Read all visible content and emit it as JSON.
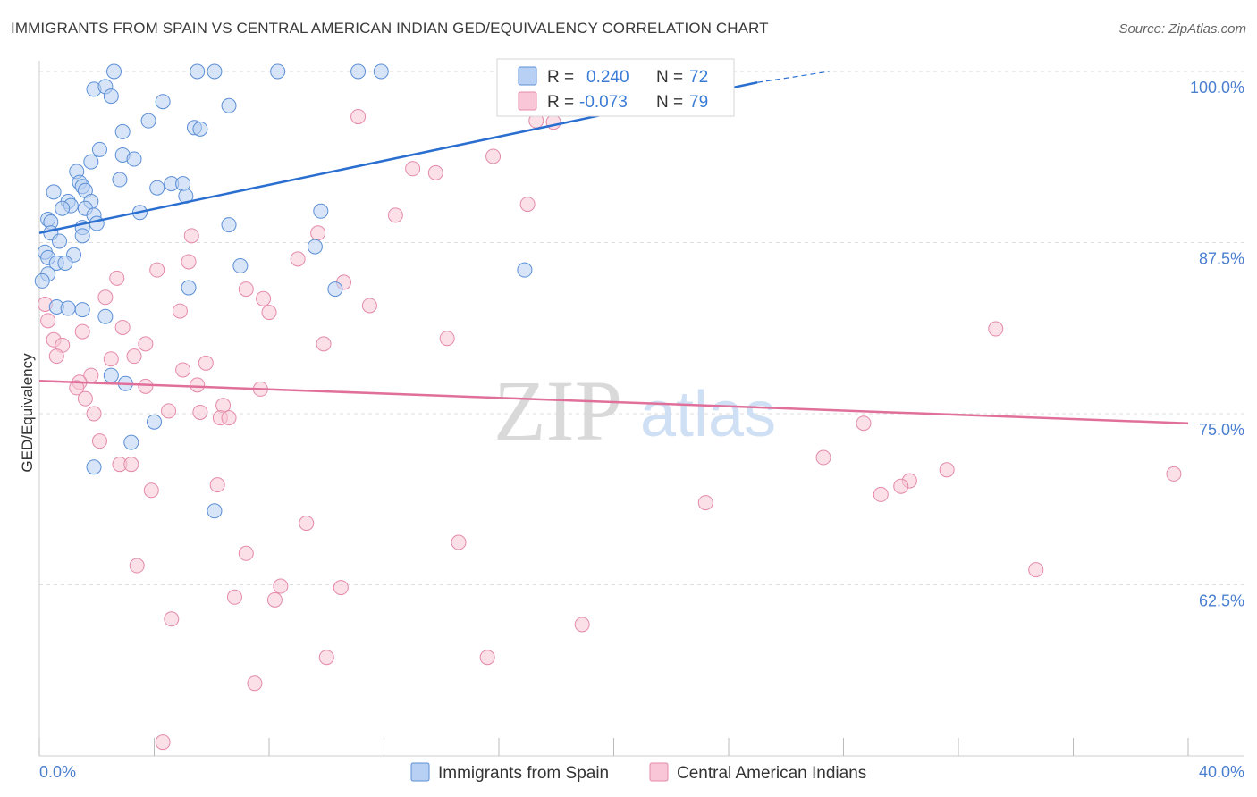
{
  "header": {
    "title": "IMMIGRANTS FROM SPAIN VS CENTRAL AMERICAN INDIAN GED/EQUIVALENCY CORRELATION CHART",
    "source": "Source: ZipAtlas.com"
  },
  "watermark": {
    "part1": "ZIP",
    "part2": "atlas"
  },
  "legend": {
    "rows": [
      {
        "r_label": "R =",
        "r_value": "0.240",
        "n_label": "N =",
        "n_value": "72"
      },
      {
        "r_label": "R =",
        "r_value": "-0.073",
        "n_label": "N =",
        "n_value": "79"
      }
    ]
  },
  "bottom_legend": [
    "Immigrants from Spain",
    "Central American Indians"
  ],
  "colors": {
    "blue_fill": "#b8d0f3",
    "blue_stroke": "#5b8fd6",
    "blue_line": "#2a6fd0",
    "pink_fill": "#f8c6d6",
    "pink_stroke": "#e48aaa",
    "pink_line": "#e0709a",
    "grid": "#dddddd",
    "tick_label": "#4a7fd0"
  },
  "chart_data": {
    "type": "scatter",
    "title": "IMMIGRANTS FROM SPAIN VS CENTRAL AMERICAN INDIAN GED/EQUIVALENCY CORRELATION CHART",
    "xlabel": "",
    "ylabel": "GED/Equivalency",
    "xlim": [
      0,
      40
    ],
    "ylim": [
      50,
      100
    ],
    "x_ticks": [
      "0.0%",
      "40.0%"
    ],
    "y_ticks": [
      {
        "value": 100,
        "label": "100.0%"
      },
      {
        "value": 87.5,
        "label": "87.5%"
      },
      {
        "value": 75,
        "label": "75.0%"
      },
      {
        "value": 62.5,
        "label": "62.5%"
      }
    ],
    "grid": true,
    "legend_position": "top-center",
    "series": [
      {
        "name": "Immigrants from Spain",
        "r": 0.24,
        "n": 72,
        "trend": {
          "x": [
            0,
            25
          ],
          "y": [
            88.2,
            99.2
          ],
          "dashed_to": [
            27.5,
            100.0
          ]
        },
        "points": [
          [
            2.6,
            100
          ],
          [
            5.5,
            100
          ],
          [
            6.1,
            100
          ],
          [
            8.3,
            100
          ],
          [
            11.1,
            100
          ],
          [
            11.9,
            100
          ],
          [
            21.9,
            100
          ],
          [
            1.9,
            98.7
          ],
          [
            2.3,
            98.9
          ],
          [
            2.5,
            98.2
          ],
          [
            4.3,
            97.8
          ],
          [
            6.6,
            97.5
          ],
          [
            3.8,
            96.4
          ],
          [
            5.4,
            95.9
          ],
          [
            5.6,
            95.8
          ],
          [
            2.9,
            95.6
          ],
          [
            2.1,
            94.3
          ],
          [
            2.9,
            93.9
          ],
          [
            3.3,
            93.6
          ],
          [
            1.8,
            93.4
          ],
          [
            1.3,
            92.7
          ],
          [
            2.8,
            92.1
          ],
          [
            4.6,
            91.8
          ],
          [
            5.0,
            91.8
          ],
          [
            1.4,
            91.9
          ],
          [
            1.5,
            91.6
          ],
          [
            4.1,
            91.5
          ],
          [
            1.6,
            91.3
          ],
          [
            0.5,
            91.2
          ],
          [
            5.1,
            90.9
          ],
          [
            1.0,
            90.5
          ],
          [
            1.8,
            90.5
          ],
          [
            1.1,
            90.2
          ],
          [
            0.8,
            90.0
          ],
          [
            1.6,
            90.0
          ],
          [
            3.5,
            89.7
          ],
          [
            9.8,
            89.8
          ],
          [
            1.9,
            89.5
          ],
          [
            0.3,
            89.2
          ],
          [
            0.4,
            89.0
          ],
          [
            2.0,
            88.9
          ],
          [
            6.6,
            88.8
          ],
          [
            1.5,
            88.6
          ],
          [
            0.4,
            88.2
          ],
          [
            1.5,
            88.0
          ],
          [
            0.7,
            87.6
          ],
          [
            9.6,
            87.2
          ],
          [
            0.2,
            86.8
          ],
          [
            1.2,
            86.6
          ],
          [
            0.3,
            86.4
          ],
          [
            0.6,
            86.0
          ],
          [
            0.9,
            86.0
          ],
          [
            7.0,
            85.8
          ],
          [
            16.9,
            85.5
          ],
          [
            0.3,
            85.2
          ],
          [
            0.1,
            84.7
          ],
          [
            5.2,
            84.2
          ],
          [
            10.3,
            84.1
          ],
          [
            0.6,
            82.8
          ],
          [
            1.0,
            82.7
          ],
          [
            1.5,
            82.6
          ],
          [
            2.3,
            82.1
          ],
          [
            2.5,
            77.8
          ],
          [
            3.0,
            77.2
          ],
          [
            4.0,
            74.4
          ],
          [
            3.2,
            72.9
          ],
          [
            1.9,
            71.1
          ],
          [
            6.1,
            67.9
          ]
        ]
      },
      {
        "name": "Central American Indians",
        "r": -0.073,
        "n": 79,
        "trend": {
          "x": [
            0,
            40
          ],
          "y": [
            77.4,
            74.3
          ]
        },
        "points": [
          [
            22.4,
            100
          ],
          [
            11.1,
            96.7
          ],
          [
            17.9,
            96.3
          ],
          [
            17.3,
            96.4
          ],
          [
            15.8,
            93.8
          ],
          [
            13.0,
            92.9
          ],
          [
            13.8,
            92.6
          ],
          [
            17.0,
            90.3
          ],
          [
            12.4,
            89.5
          ],
          [
            5.3,
            88.0
          ],
          [
            9.7,
            88.2
          ],
          [
            9.0,
            86.3
          ],
          [
            5.2,
            86.1
          ],
          [
            4.1,
            85.5
          ],
          [
            2.7,
            84.9
          ],
          [
            10.6,
            84.6
          ],
          [
            7.2,
            84.1
          ],
          [
            2.3,
            83.5
          ],
          [
            7.8,
            83.4
          ],
          [
            0.2,
            83.0
          ],
          [
            11.5,
            82.9
          ],
          [
            4.9,
            82.5
          ],
          [
            8.0,
            82.4
          ],
          [
            0.3,
            81.8
          ],
          [
            2.9,
            81.3
          ],
          [
            1.5,
            81.0
          ],
          [
            33.3,
            81.2
          ],
          [
            0.5,
            80.4
          ],
          [
            0.8,
            80.0
          ],
          [
            3.7,
            80.1
          ],
          [
            9.9,
            80.1
          ],
          [
            14.2,
            80.5
          ],
          [
            0.6,
            79.2
          ],
          [
            2.5,
            79.0
          ],
          [
            3.3,
            79.2
          ],
          [
            5.8,
            78.7
          ],
          [
            5.0,
            78.2
          ],
          [
            1.8,
            77.8
          ],
          [
            1.4,
            77.3
          ],
          [
            1.3,
            76.9
          ],
          [
            3.7,
            77.0
          ],
          [
            5.5,
            77.1
          ],
          [
            7.7,
            76.8
          ],
          [
            1.6,
            76.1
          ],
          [
            4.5,
            75.2
          ],
          [
            5.6,
            75.1
          ],
          [
            6.4,
            75.6
          ],
          [
            1.9,
            75.0
          ],
          [
            6.3,
            74.7
          ],
          [
            6.6,
            74.7
          ],
          [
            28.7,
            74.3
          ],
          [
            2.1,
            73.0
          ],
          [
            2.8,
            71.3
          ],
          [
            3.2,
            71.3
          ],
          [
            27.3,
            71.8
          ],
          [
            31.6,
            70.9
          ],
          [
            30.3,
            70.1
          ],
          [
            30.0,
            69.7
          ],
          [
            39.5,
            70.6
          ],
          [
            29.3,
            69.1
          ],
          [
            6.2,
            69.8
          ],
          [
            3.9,
            69.4
          ],
          [
            23.2,
            68.5
          ],
          [
            9.3,
            67.0
          ],
          [
            14.6,
            65.6
          ],
          [
            7.2,
            64.8
          ],
          [
            3.4,
            63.9
          ],
          [
            34.7,
            63.6
          ],
          [
            8.4,
            62.4
          ],
          [
            10.5,
            62.3
          ],
          [
            6.8,
            61.6
          ],
          [
            8.2,
            61.4
          ],
          [
            4.6,
            60.0
          ],
          [
            18.9,
            59.6
          ],
          [
            10.0,
            57.2
          ],
          [
            15.6,
            57.2
          ],
          [
            7.5,
            55.3
          ],
          [
            4.3,
            51.0
          ]
        ]
      }
    ]
  }
}
